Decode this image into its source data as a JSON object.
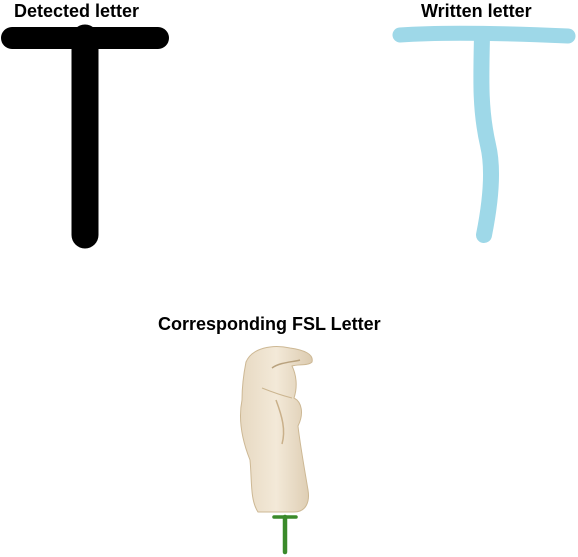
{
  "panels": {
    "detected": {
      "title": "Detected letter",
      "letter": "T",
      "stroke_color": "#000000"
    },
    "written": {
      "title": "Written letter",
      "letter": "T",
      "stroke_color": "#9ed8e8"
    },
    "fsl": {
      "title": "Corresponding FSL Letter",
      "letter": "T",
      "letter_color": "#3a8a2a",
      "image_icon": "hand-sign-icon"
    }
  }
}
